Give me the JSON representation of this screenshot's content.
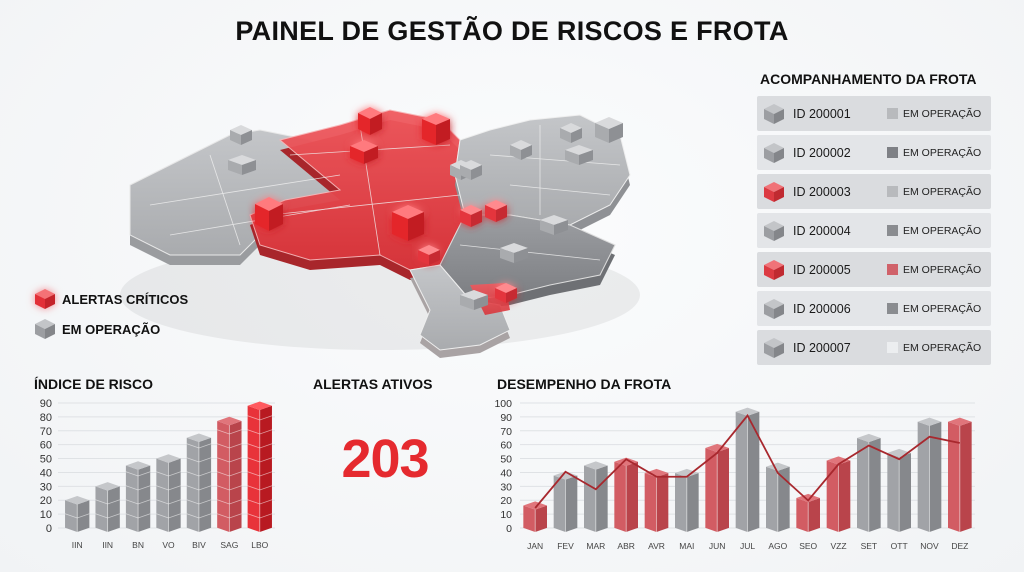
{
  "title": "PAINEL DE GESTÃO DE RISCOS E FROTA",
  "colors": {
    "critical": "#e52a2f",
    "operating": "#8e9094",
    "background": "#f3f5f7"
  },
  "map": {
    "legend": [
      {
        "icon": "red-cube-icon",
        "label": "ALERTAS CRÍTICOS"
      },
      {
        "icon": "gray-cube-icon",
        "label": "EM OPERAÇÃO"
      }
    ]
  },
  "fleet": {
    "title": "ACOMPANHAMENTO DA FROTA",
    "items": [
      {
        "id": "ID 200001",
        "status": "EM OPERAÇÃO",
        "cube": "gray",
        "status_color": "#b8babd"
      },
      {
        "id": "ID 200002",
        "status": "EM OPERAÇÃO",
        "cube": "gray",
        "status_color": "#7e8085"
      },
      {
        "id": "ID 200003",
        "status": "EM OPERAÇÃO",
        "cube": "red",
        "status_color": "#b8babd"
      },
      {
        "id": "ID 200004",
        "status": "EM OPERAÇÃO",
        "cube": "gray",
        "status_color": "#8a8c90"
      },
      {
        "id": "ID 200005",
        "status": "EM OPERAÇÃO",
        "cube": "red",
        "status_color": "#d0626a"
      },
      {
        "id": "ID 200006",
        "status": "EM OPERAÇÃO",
        "cube": "gray",
        "status_color": "#8a8c90"
      },
      {
        "id": "ID 200007",
        "status": "EM OPERAÇÃO",
        "cube": "gray",
        "status_color": "#eceef0"
      }
    ]
  },
  "alerts": {
    "title": "ALERTAS ATIVOS",
    "value": "203"
  },
  "chart_data": [
    {
      "type": "bar",
      "title": "ÍNDICE DE RISCO",
      "categories": [
        "IIN",
        "IIN",
        "BN",
        "VO",
        "BIV",
        "SAG",
        "LBO"
      ],
      "values": [
        20,
        30,
        45,
        50,
        65,
        77,
        88
      ],
      "bar_colors": [
        "gray",
        "gray",
        "gray",
        "gray",
        "gray",
        "light-red",
        "red"
      ],
      "yticks": [
        0,
        10,
        20,
        30,
        40,
        50,
        60,
        70,
        80,
        90
      ],
      "ylim": [
        0,
        90
      ],
      "grid": true,
      "xlabel": "",
      "ylabel": ""
    },
    {
      "type": "bar+line",
      "title": "DESEMPENHO DA FROTA",
      "categories": [
        "JAN",
        "FEV",
        "MAR",
        "ABR",
        "AVR",
        "MAI",
        "JUN",
        "JUL",
        "AGO",
        "SEO",
        "VZZ",
        "SET",
        "OTT",
        "NOV",
        "DEZ"
      ],
      "series": [
        {
          "name": "bars",
          "type": "bar",
          "values": [
            18,
            42,
            50,
            53,
            44,
            44,
            64,
            93,
            49,
            24,
            54,
            72,
            60,
            85,
            85
          ]
        },
        {
          "name": "line",
          "type": "line",
          "values": [
            16,
            45,
            31,
            55,
            41,
            41,
            60,
            90,
            44,
            22,
            51,
            66,
            55,
            73,
            68
          ]
        }
      ],
      "bar_colors": [
        "red",
        "gray",
        "gray",
        "red",
        "red",
        "gray",
        "red",
        "gray",
        "gray",
        "red",
        "red",
        "gray",
        "gray",
        "gray",
        "red"
      ],
      "yticks_labels": [
        "0",
        "10",
        "20",
        "30",
        "40",
        "50",
        "60",
        "70",
        "90",
        "100"
      ],
      "ylim": [
        0,
        100
      ],
      "grid": true,
      "xlabel": "",
      "ylabel": ""
    }
  ]
}
